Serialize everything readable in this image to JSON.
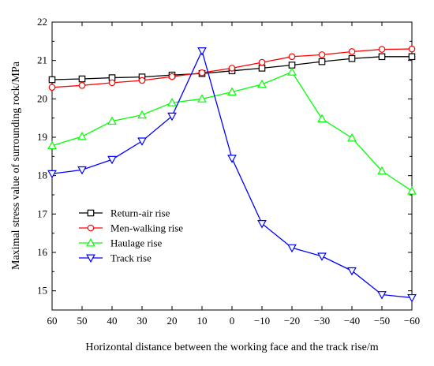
{
  "chart_data": {
    "type": "line",
    "xlabel": "Horizontal distance between the working face and the track rise/m",
    "ylabel": "Maximal stress value of surrounding rock/MPa",
    "x": [
      60,
      50,
      40,
      30,
      20,
      10,
      0,
      -10,
      -20,
      -30,
      -40,
      -50,
      -60
    ],
    "x_tick_labels": [
      "60",
      "50",
      "40",
      "30",
      "20",
      "10",
      "0",
      "−10",
      "−20",
      "−30",
      "−40",
      "−50",
      "−60"
    ],
    "x_reversed": true,
    "xlim": [
      60,
      -60
    ],
    "ylim": [
      14.5,
      22
    ],
    "y_ticks": [
      15,
      16,
      17,
      18,
      19,
      20,
      21,
      22
    ],
    "grid": false,
    "legend_position": "center-left",
    "series": [
      {
        "name": "Return-air rise",
        "color": "#000000",
        "marker": "square",
        "values": [
          20.5,
          20.52,
          20.55,
          20.57,
          20.62,
          20.66,
          20.73,
          20.8,
          20.88,
          20.97,
          21.05,
          21.1,
          21.1
        ]
      },
      {
        "name": "Men-walking rise",
        "color": "#ff0000",
        "marker": "circle",
        "values": [
          20.3,
          20.35,
          20.42,
          20.48,
          20.58,
          20.68,
          20.8,
          20.95,
          21.1,
          21.15,
          21.23,
          21.29,
          21.3
        ]
      },
      {
        "name": "Haulage rise",
        "color": "#00ff00",
        "marker": "triangle-up",
        "values": [
          18.78,
          19.02,
          19.42,
          19.58,
          19.9,
          20.0,
          20.18,
          20.38,
          20.7,
          19.48,
          18.98,
          18.12,
          17.6
        ]
      },
      {
        "name": "Track rise",
        "color": "#0000ff",
        "marker": "triangle-down",
        "values": [
          18.05,
          18.15,
          18.42,
          18.9,
          19.55,
          21.25,
          18.45,
          16.75,
          16.12,
          15.9,
          15.52,
          14.9,
          14.82
        ]
      }
    ]
  }
}
